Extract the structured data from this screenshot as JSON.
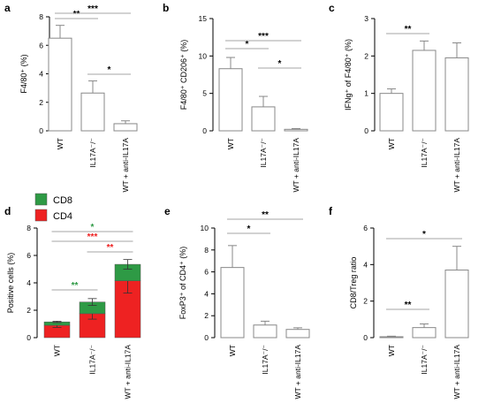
{
  "figure": {
    "categories": [
      "WT",
      "IL17A⁻/⁻",
      "WT + anti-IL17A"
    ],
    "legend": [
      {
        "label": "CD8",
        "color": "#2e9a45"
      },
      {
        "label": "CD4",
        "color": "#ee2222"
      }
    ],
    "colors": {
      "bar_fill": "#ffffff",
      "line": "#888888",
      "star_default": "#000000",
      "star_green": "#2e9a45",
      "star_red": "#ee2222"
    }
  },
  "chart_data": [
    {
      "panel": "a",
      "type": "bar",
      "ylabel": "F4/80⁺ (%)",
      "ylim": [
        0,
        8
      ],
      "yticks": [
        "0",
        "2",
        "4",
        "6",
        "8"
      ],
      "categories": [
        "WT",
        "IL17A⁻/⁻",
        "WT + anti-IL17A"
      ],
      "values": [
        6.5,
        2.65,
        0.5
      ],
      "errors": [
        0.9,
        0.85,
        0.2
      ],
      "significance": [
        {
          "from": 0,
          "to": 1,
          "label": "**"
        },
        {
          "from": 0,
          "to": 2,
          "label": "***"
        },
        {
          "from": 1,
          "to": 2,
          "label": "*"
        }
      ]
    },
    {
      "panel": "b",
      "type": "bar",
      "ylabel": "F4/80⁺ CD206⁺ (%)",
      "ylim": [
        0,
        15
      ],
      "yticks": [
        "0",
        "5",
        "10",
        "15"
      ],
      "categories": [
        "WT",
        "IL17A⁻/⁻",
        "WT + anti-IL17A"
      ],
      "values": [
        8.3,
        3.2,
        0.2
      ],
      "errors": [
        1.5,
        1.4,
        0.1
      ],
      "significance": [
        {
          "from": 0,
          "to": 1,
          "label": "*"
        },
        {
          "from": 0,
          "to": 2,
          "label": "***"
        },
        {
          "from": 1,
          "to": 2,
          "label": "*"
        }
      ]
    },
    {
      "panel": "c",
      "type": "bar",
      "ylabel": "IFNg⁺ of F4/80⁺ (%)",
      "ylim": [
        0,
        3
      ],
      "yticks": [
        "0",
        "1",
        "2",
        "3"
      ],
      "categories": [
        "WT",
        "IL17A⁻/⁻",
        "WT + anti-IL17A"
      ],
      "values": [
        1.0,
        2.15,
        1.95
      ],
      "errors": [
        0.12,
        0.25,
        0.4
      ],
      "significance": [
        {
          "from": 0,
          "to": 1,
          "label": "**"
        }
      ]
    },
    {
      "panel": "d",
      "type": "stacked-bar",
      "ylabel": "Positive cells (%)",
      "ylim": [
        0,
        8
      ],
      "yticks": [
        "0",
        "2",
        "4",
        "6",
        "8"
      ],
      "categories": [
        "WT",
        "IL17A⁻/⁻",
        "WT + anti-IL17A"
      ],
      "series": [
        {
          "name": "CD4",
          "values": [
            0.9,
            1.75,
            4.15
          ],
          "errors": [
            0.15,
            0.4,
            0.9
          ]
        },
        {
          "name": "CD8",
          "values": [
            0.25,
            0.85,
            1.2
          ],
          "errors": [
            0.05,
            0.25,
            0.35
          ]
        }
      ],
      "significance": [
        {
          "from": 0,
          "to": 1,
          "label": "**",
          "color": "green"
        },
        {
          "from": 0,
          "to": 2,
          "label": "*",
          "color": "green"
        },
        {
          "from": 0,
          "to": 2,
          "label": "***",
          "color": "red"
        },
        {
          "from": 1,
          "to": 2,
          "label": "**",
          "color": "red"
        }
      ]
    },
    {
      "panel": "e",
      "type": "bar",
      "ylabel": "FoxP3⁺ of CD4⁺ (%)",
      "ylim": [
        0,
        10
      ],
      "yticks": [
        "0",
        "2",
        "4",
        "6",
        "8",
        "10"
      ],
      "categories": [
        "WT",
        "IL17A⁻/⁻",
        "WT + anti-IL17A"
      ],
      "values": [
        6.4,
        1.15,
        0.75
      ],
      "errors": [
        2.0,
        0.35,
        0.15
      ],
      "significance": [
        {
          "from": 0,
          "to": 1,
          "label": "*"
        },
        {
          "from": 0,
          "to": 2,
          "label": "**"
        }
      ]
    },
    {
      "panel": "f",
      "type": "bar",
      "ylabel": "CD8/Treg ratio",
      "ylim": [
        0,
        6
      ],
      "yticks": [
        "0",
        "2",
        "4",
        "6"
      ],
      "categories": [
        "WT",
        "IL17A⁻/⁻",
        "WT + anti-IL17A"
      ],
      "values": [
        0.05,
        0.55,
        3.7
      ],
      "errors": [
        0.03,
        0.2,
        1.3
      ],
      "significance": [
        {
          "from": 0,
          "to": 1,
          "label": "**"
        },
        {
          "from": 0,
          "to": 2,
          "label": "*"
        }
      ]
    }
  ]
}
